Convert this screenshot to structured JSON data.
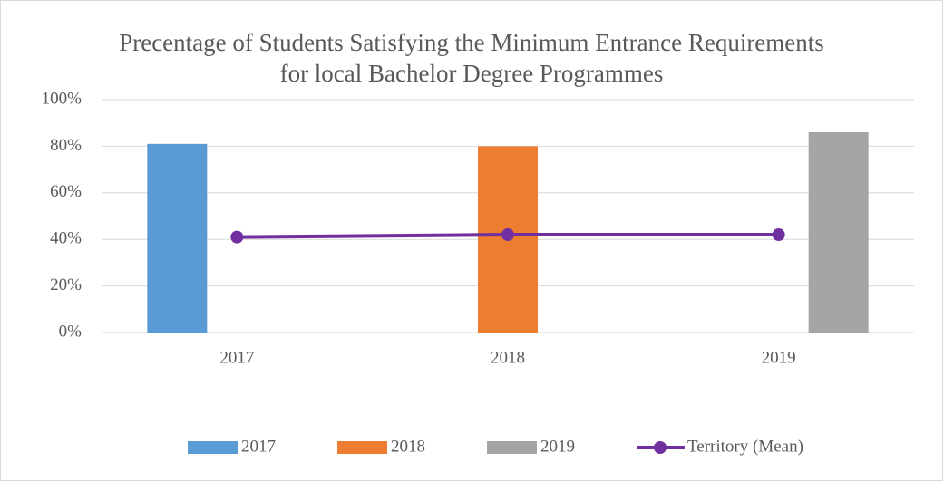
{
  "chart_data": {
    "type": "bar_line",
    "title": "Precentage of Students Satisfying the Minimum Entrance Requirements for local Bachelor Degree Programmes",
    "categories": [
      "2017",
      "2018",
      "2019"
    ],
    "series": [
      {
        "name": "2017",
        "type": "bar",
        "color": "#5b9bd5",
        "values": [
          81,
          null,
          null
        ]
      },
      {
        "name": "2018",
        "type": "bar",
        "color": "#ed7d31",
        "values": [
          null,
          80,
          null
        ]
      },
      {
        "name": "2019",
        "type": "bar",
        "color": "#a5a5a5",
        "values": [
          null,
          null,
          86
        ]
      },
      {
        "name": "Territory (Mean)",
        "type": "line",
        "color": "#7030a0",
        "values": [
          41,
          42,
          42
        ]
      }
    ],
    "ylim": [
      0,
      100
    ],
    "yticks": [
      {
        "value": 0,
        "label": "0%"
      },
      {
        "value": 20,
        "label": "20%"
      },
      {
        "value": 40,
        "label": "40%"
      },
      {
        "value": 60,
        "label": "60%"
      },
      {
        "value": 80,
        "label": "80%"
      },
      {
        "value": 100,
        "label": "100%"
      }
    ],
    "grid": true,
    "legend": "bottom"
  }
}
